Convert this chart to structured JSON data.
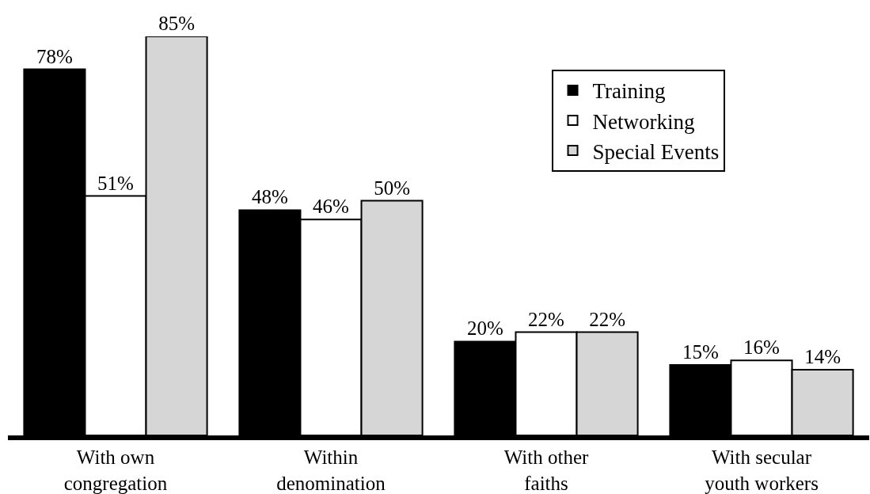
{
  "chart_data": {
    "type": "bar",
    "categories": [
      "With own congregation",
      "Within denomination",
      "With other faiths",
      "With secular youth workers"
    ],
    "series": [
      {
        "name": "Training",
        "color": "#000000",
        "values": [
          78,
          48,
          20,
          15
        ],
        "value_labels": [
          "78%",
          "48%",
          "20%",
          "15%"
        ]
      },
      {
        "name": "Networking",
        "color": "#ffffff",
        "values": [
          51,
          46,
          22,
          16
        ],
        "value_labels": [
          "51%",
          "46%",
          "22%",
          "16%"
        ]
      },
      {
        "name": "Special Events",
        "color": "#d6d6d6",
        "values": [
          85,
          50,
          22,
          14
        ],
        "value_labels": [
          "85%",
          "50%",
          "22%",
          "14%"
        ]
      }
    ],
    "legend": "top right",
    "grid": false
  }
}
